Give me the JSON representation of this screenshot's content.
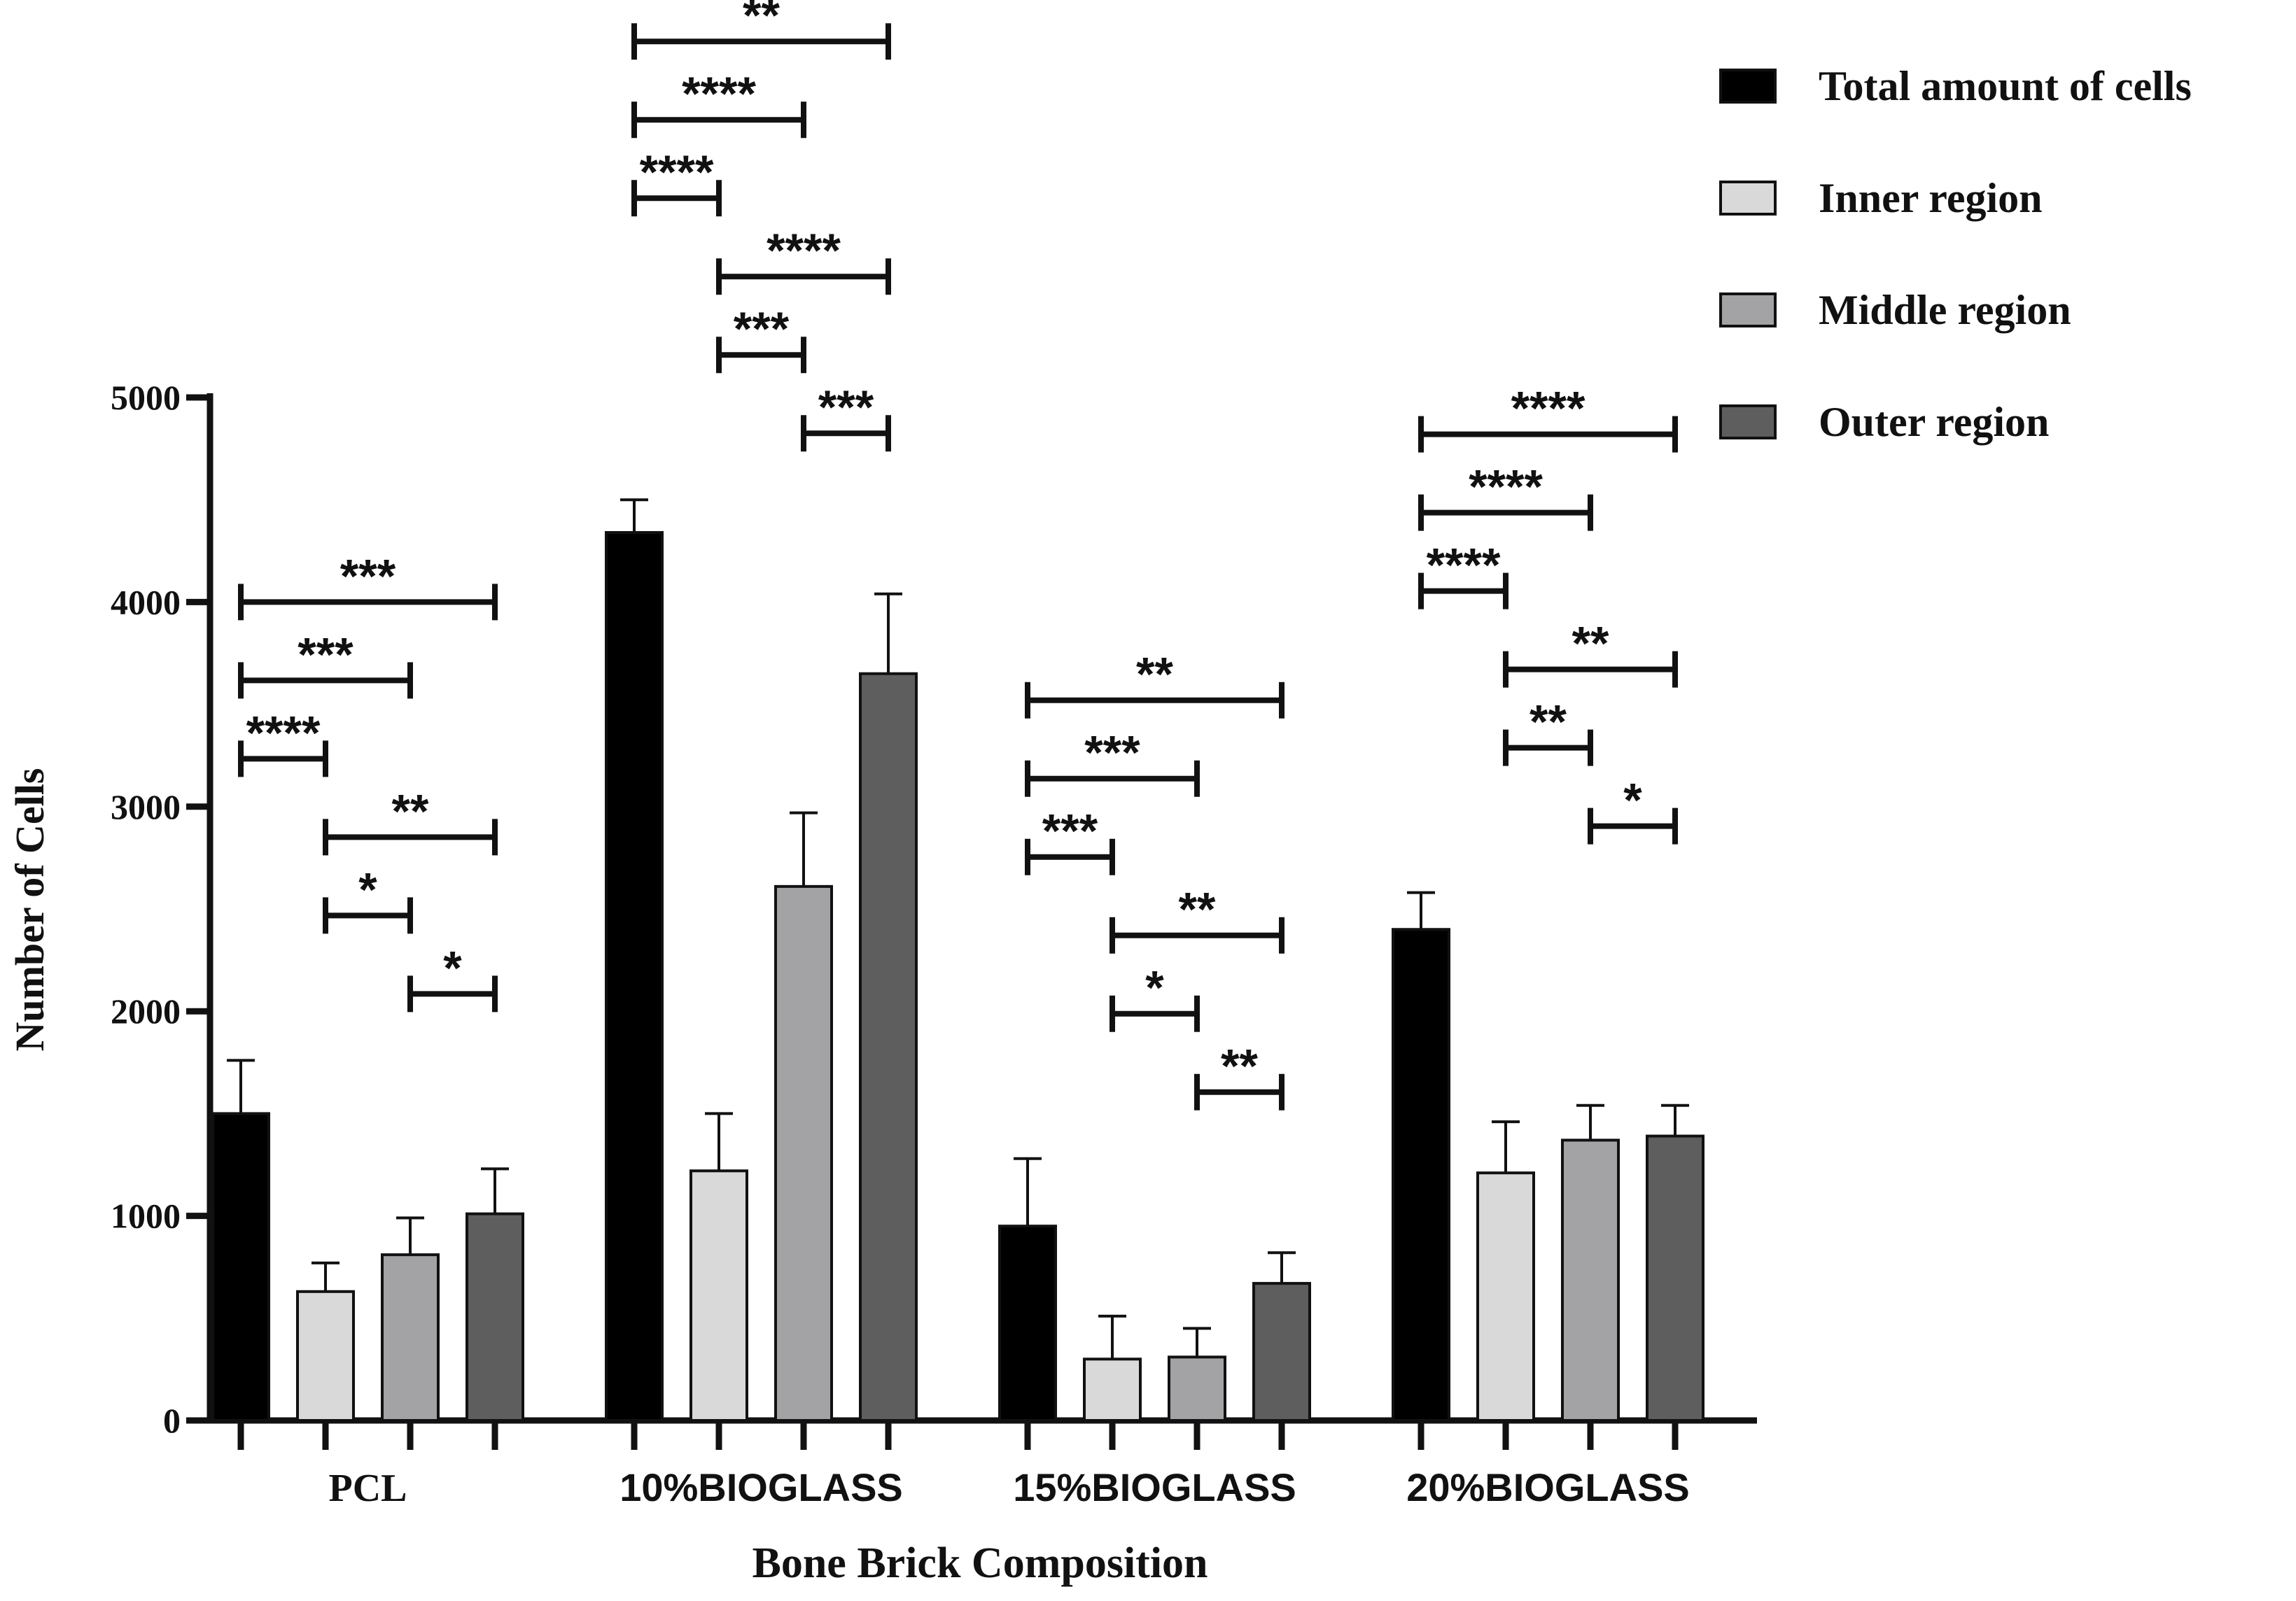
{
  "chart_data": {
    "type": "bar",
    "title": "",
    "xlabel": "Bone Brick Composition",
    "ylabel": "Number of Cells",
    "ylim": [
      0,
      5000
    ],
    "yticks": [
      0,
      1000,
      2000,
      3000,
      4000,
      5000
    ],
    "ytick_labels": [
      "0",
      "1000",
      "2000",
      "3000",
      "4000",
      "5000"
    ],
    "categories": [
      "PCL",
      "10%BIOGLASS",
      "15%BIOGLASS",
      "20%BIOGLASS"
    ],
    "legend_position": "top-right",
    "series": [
      {
        "name": "Total amount of cells",
        "color": "#000000",
        "values": [
          1500,
          4340,
          950,
          2400
        ],
        "errors": [
          260,
          160,
          330,
          180
        ]
      },
      {
        "name": "Inner region",
        "color": "#d9d9d9",
        "values": [
          630,
          1220,
          300,
          1210
        ],
        "errors": [
          140,
          280,
          210,
          250
        ]
      },
      {
        "name": "Middle region",
        "color": "#a3a3a6",
        "values": [
          810,
          2610,
          310,
          1370
        ],
        "errors": [
          180,
          360,
          140,
          170
        ]
      },
      {
        "name": "Outer region",
        "color": "#5e5e5e",
        "values": [
          1010,
          3650,
          670,
          1390
        ],
        "errors": [
          220,
          390,
          150,
          150
        ]
      }
    ],
    "significance": [
      {
        "group": 0,
        "from": 0,
        "to": 3,
        "label": "***"
      },
      {
        "group": 0,
        "from": 0,
        "to": 2,
        "label": "***"
      },
      {
        "group": 0,
        "from": 0,
        "to": 1,
        "label": "****"
      },
      {
        "group": 0,
        "from": 1,
        "to": 3,
        "label": "**"
      },
      {
        "group": 0,
        "from": 1,
        "to": 2,
        "label": "*"
      },
      {
        "group": 0,
        "from": 2,
        "to": 3,
        "label": "*"
      },
      {
        "group": 1,
        "from": 0,
        "to": 3,
        "label": "**"
      },
      {
        "group": 1,
        "from": 0,
        "to": 2,
        "label": "****"
      },
      {
        "group": 1,
        "from": 0,
        "to": 1,
        "label": "****"
      },
      {
        "group": 1,
        "from": 1,
        "to": 3,
        "label": "****"
      },
      {
        "group": 1,
        "from": 1,
        "to": 2,
        "label": "***"
      },
      {
        "group": 1,
        "from": 2,
        "to": 3,
        "label": "***"
      },
      {
        "group": 2,
        "from": 0,
        "to": 3,
        "label": "**"
      },
      {
        "group": 2,
        "from": 0,
        "to": 2,
        "label": "***"
      },
      {
        "group": 2,
        "from": 0,
        "to": 1,
        "label": "***"
      },
      {
        "group": 2,
        "from": 1,
        "to": 3,
        "label": "**"
      },
      {
        "group": 2,
        "from": 1,
        "to": 2,
        "label": "*"
      },
      {
        "group": 2,
        "from": 2,
        "to": 3,
        "label": "**"
      },
      {
        "group": 3,
        "from": 0,
        "to": 3,
        "label": "****"
      },
      {
        "group": 3,
        "from": 0,
        "to": 2,
        "label": "****"
      },
      {
        "group": 3,
        "from": 0,
        "to": 1,
        "label": "****"
      },
      {
        "group": 3,
        "from": 1,
        "to": 3,
        "label": "**"
      },
      {
        "group": 3,
        "from": 1,
        "to": 2,
        "label": "**"
      },
      {
        "group": 3,
        "from": 2,
        "to": 3,
        "label": "*"
      }
    ]
  }
}
